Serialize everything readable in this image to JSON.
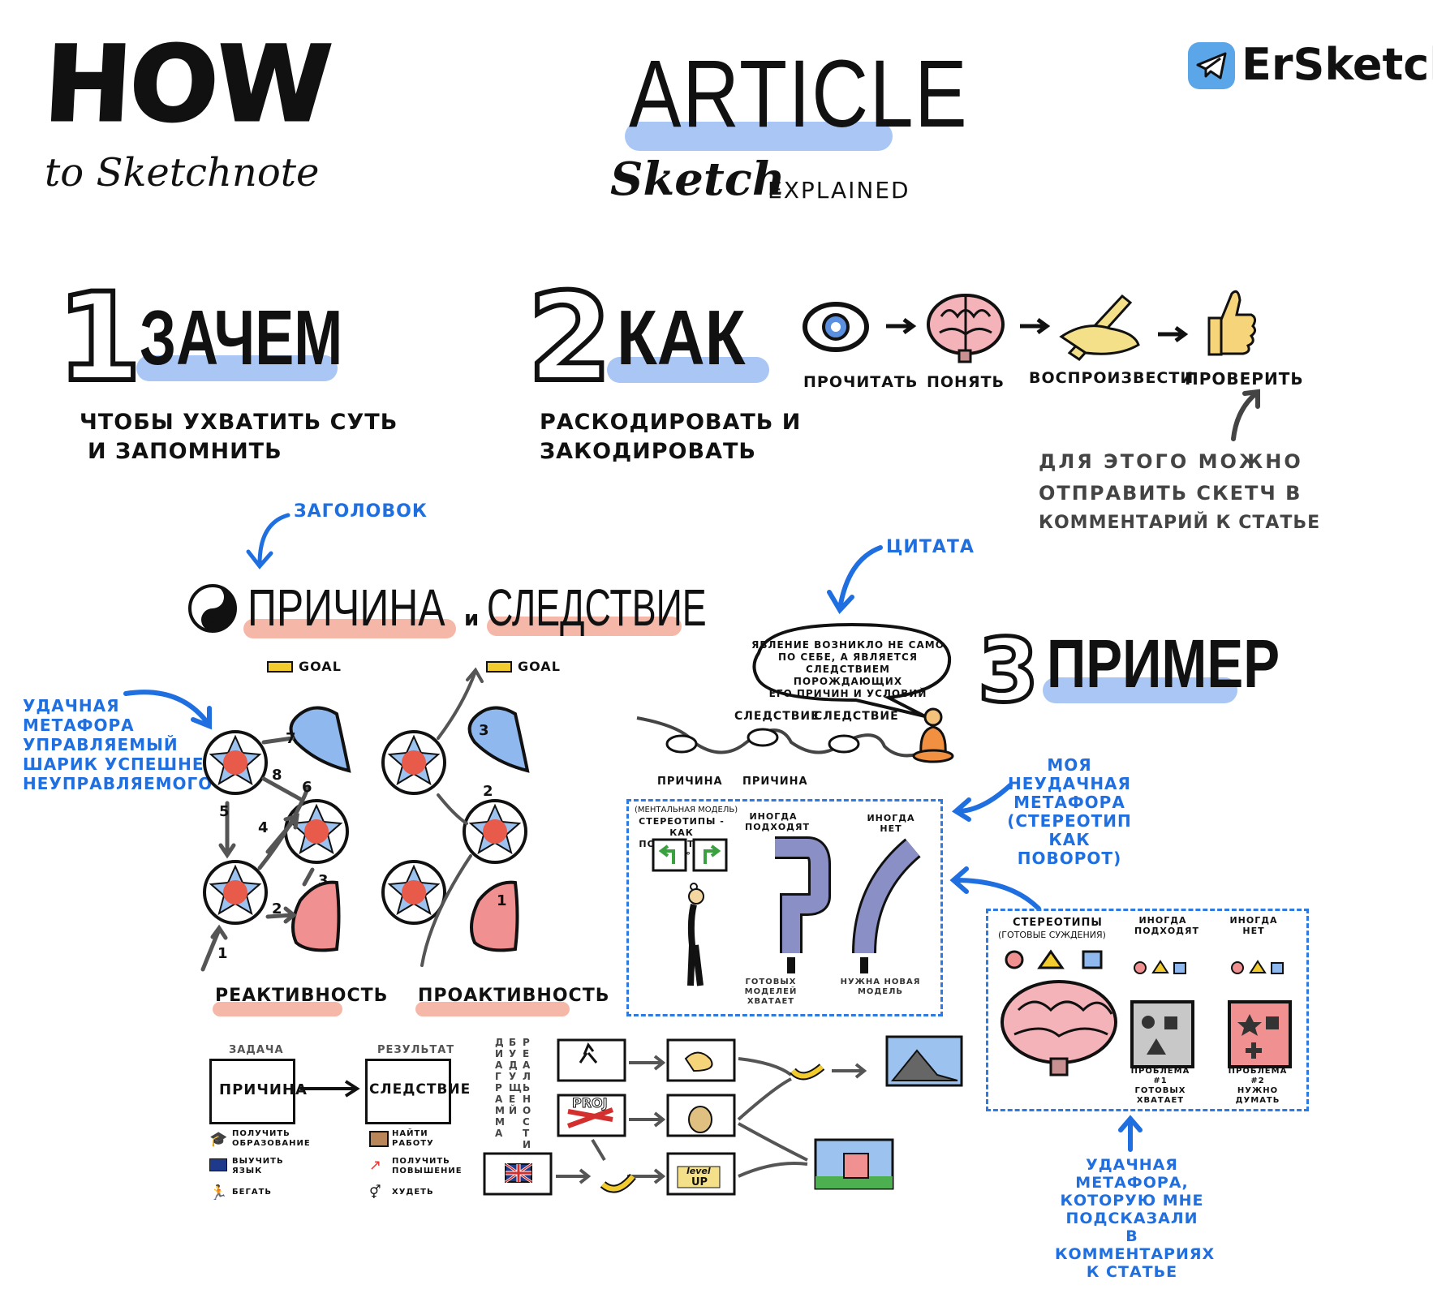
{
  "header": {
    "how": "HOW",
    "to_sketchnote": "to Sketchnote",
    "article": "ARTICLE",
    "sketch": "Sketch",
    "explained": "EXPLAINED",
    "brand": "ErSketch"
  },
  "section1": {
    "number": "1",
    "title": "ЗАЧЕМ",
    "line1": "ЧТОБЫ УХВАТИТЬ СУТЬ",
    "line2": "И ЗАПОМНИТЬ"
  },
  "section2": {
    "number": "2",
    "title": "КАК",
    "line1": "РАСКОДИРОВАТЬ И",
    "line2": "ЗАКОДИРОВАТЬ",
    "steps": [
      "ПРОЧИТАТЬ",
      "ПОНЯТЬ",
      "ВОСПРОИЗВЕСТИ",
      "ПРОВЕРИТЬ"
    ],
    "note": [
      "ДЛЯ ЭТОГО МОЖНО",
      "ОТПРАВИТЬ СКЕТЧ В",
      "КОММЕНТАРИЙ К СТАТЬЕ"
    ]
  },
  "section3": {
    "number": "3",
    "title": "ПРИМЕР"
  },
  "sketch": {
    "heading_label": "ЗАГОЛОВОК",
    "quote_label": "ЦИТАТА",
    "title_cause": "ПРИЧИНА",
    "title_and": "и",
    "title_effect": "СЛЕДСТВИЕ",
    "goal_left": "GOAL",
    "goal_right": "GOAL",
    "reactive": "РЕАКТИВНОСТЬ",
    "proactive": "ПРОАКТИВНОСТЬ",
    "reactive_numbers": [
      "1",
      "2",
      "3",
      "4",
      "5",
      "6",
      "7",
      "8"
    ],
    "proactive_numbers": [
      "1",
      "2",
      "3"
    ],
    "metaphor_good": [
      "УДАЧНАЯ",
      "МЕТАФОРА",
      "УПРАВЛЯЕМЫЙ",
      "ШАРИК УСПЕШНЕЕ",
      "НЕУПРАВЛЯЕМОГО"
    ],
    "quote_text": [
      "ЯВЛЕНИЕ ВОЗНИКЛО НЕ САМО",
      "ПО СЕБЕ, А ЯВЛЯЕТСЯ",
      "СЛЕДСТВИЕМ ПОРОЖДАЮЩИХ",
      "ЕГО ПРИЧИН И УСЛОВИЙ"
    ],
    "chain_top": [
      "СЛЕДСТВИЕ",
      "СЛЕДСТВИЕ"
    ],
    "chain_bottom": [
      "ПРИЧИНА",
      "ПРИЧИНА"
    ],
    "bad_metaphor_note": [
      "МОЯ",
      "НЕУДАЧНАЯ",
      "МЕТАФОРА",
      "(СТЕРЕОТИП",
      "КАК ПОВОРОТ)"
    ],
    "bad_box": {
      "mental_model": "(МЕНТАЛЬНАЯ МОДЕЛЬ)",
      "stereotypes": [
        "СТЕРЕОТИПЫ - КАК",
        "ПОВОРОТЫ НА 90°"
      ],
      "sometimes_fit": [
        "ИНОГДА",
        "ПОДХОДЯТ"
      ],
      "sometimes_not": [
        "ИНОГДА",
        "НЕТ"
      ],
      "enough": [
        "ГОТОВЫХ МОДЕЛЕЙ",
        "ХВАТАЕТ"
      ],
      "new_needed": [
        "НУЖНА НОВАЯ",
        "МОДЕЛЬ"
      ]
    },
    "good_box": {
      "stereotypes": "СТЕРЕОТИПЫ",
      "ready_judgements": "(ГОТОВЫЕ СУЖДЕНИЯ)",
      "sometimes_fit": [
        "ИНОГДА",
        "ПОДХОДЯТ"
      ],
      "sometimes_not": [
        "ИНОГДА",
        "НЕТ"
      ],
      "problem1": [
        "ПРОБЛЕМА #1",
        "ГОТОВЫХ",
        "ХВАТАЕТ"
      ],
      "problem2": [
        "ПРОБЛЕМА #2",
        "НУЖНО",
        "ДУМАТЬ"
      ]
    },
    "good_metaphor_note": [
      "УДАЧНАЯ",
      "МЕТАФОРА,",
      "КОТОРУЮ МНЕ",
      "ПОДСКАЗАЛИ",
      "В КОММЕНТАРИЯХ",
      "К СТАТЬЕ"
    ],
    "task_label": "ЗАДАЧА",
    "result_label": "РЕЗУЛЬТАТ",
    "cause_box": "ПРИЧИНА",
    "effect_box": "СЛЕДСТВИЕ",
    "cause_items": [
      "ПОЛУЧИТЬ ОБРАЗОВАНИЕ",
      "ВЫУЧИТЬ ЯЗЫК",
      "БЕГАТЬ"
    ],
    "effect_items": [
      "НАЙТИ РАБОТУ",
      "ПОЛУЧИТЬ ПОВЫШЕНИЕ",
      "ХУДЕТЬ"
    ],
    "vertical_cols": [
      "ДИАГРАММА",
      "БУДУЩЕЙ",
      "РЕАЛЬНОСТИ"
    ],
    "proj": "PROJ",
    "level": "level",
    "up": "UP"
  }
}
